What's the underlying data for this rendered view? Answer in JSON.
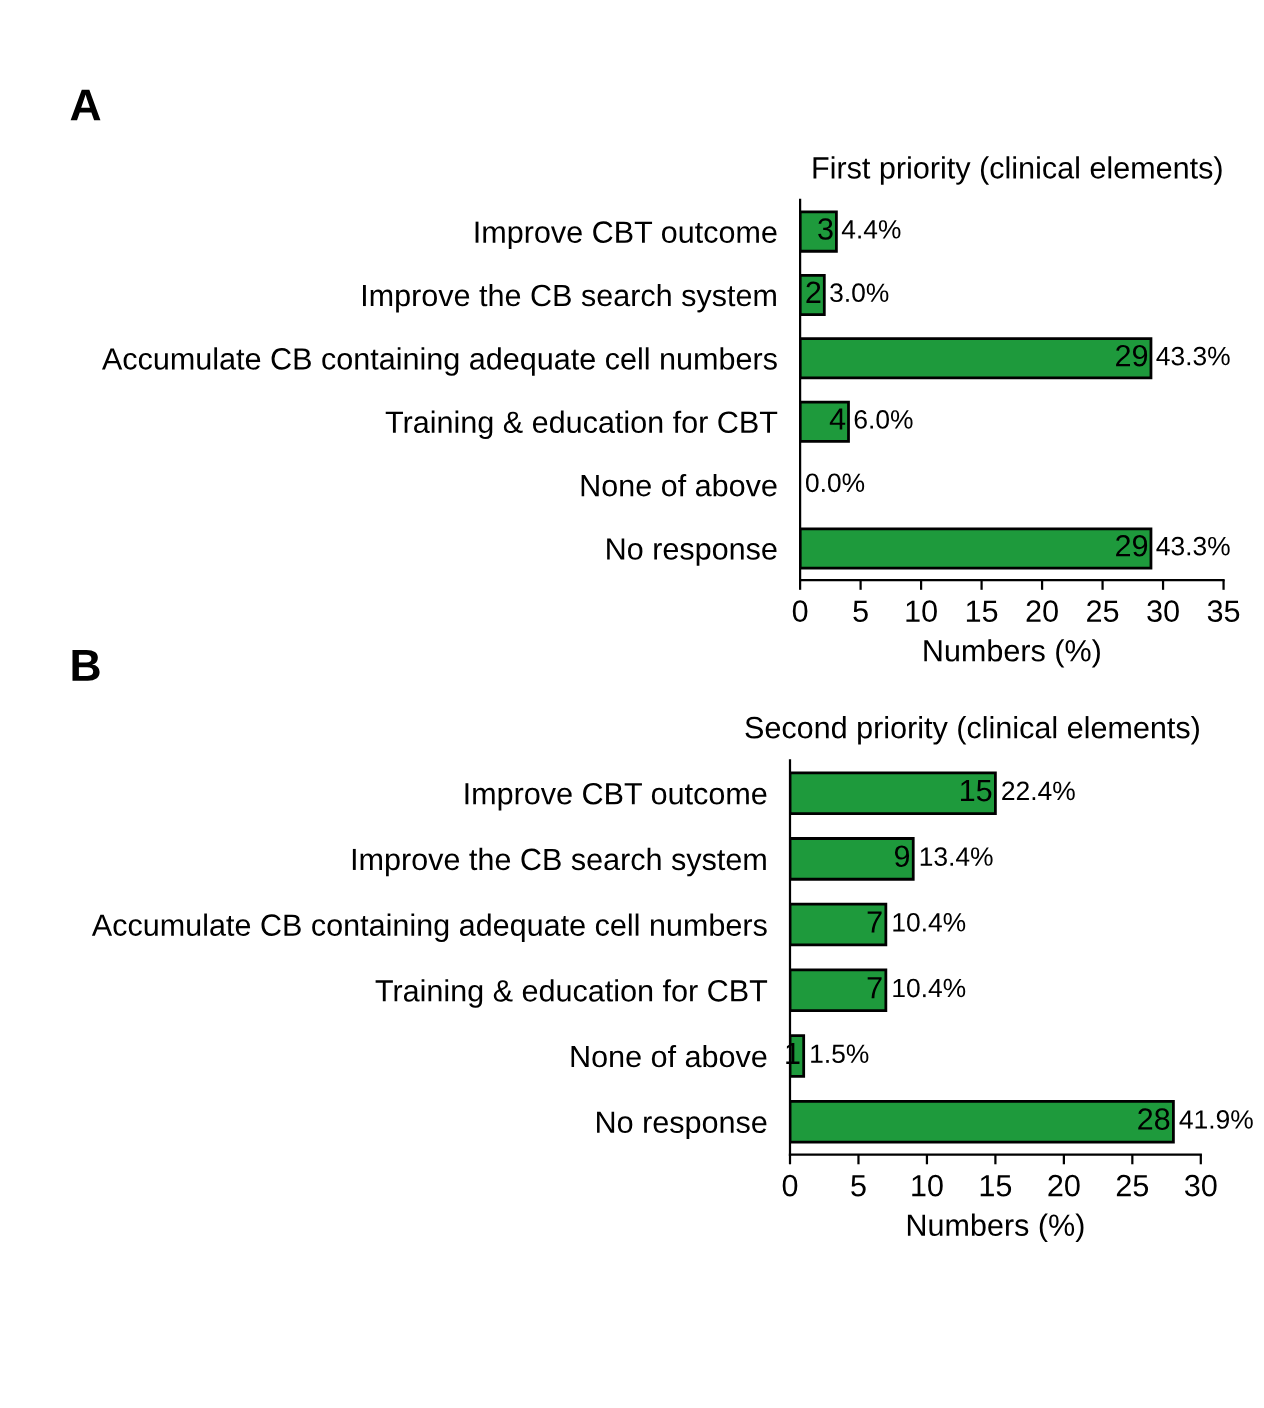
{
  "chart_data": [
    {
      "type": "bar",
      "orientation": "horizontal",
      "title": "A",
      "subtitle": "First priority (clinical elements)",
      "xlabel": "Numbers (%)",
      "categories": [
        "Improve CBT outcome",
        "Improve the CB search system",
        "Accumulate CB containing adequate cell numbers",
        "Training & education for CBT",
        "None of above",
        "No response"
      ],
      "values": [
        3,
        2,
        29,
        4,
        0,
        29
      ],
      "value_labels": [
        "3",
        "2",
        "29",
        "4",
        null,
        "29"
      ],
      "color": "#1e9a3c",
      "xlim": [
        0,
        35
      ],
      "xticks": [
        0,
        5,
        10,
        15,
        20,
        25,
        30,
        35
      ],
      "grid": false,
      "annotations": [
        {
          "text": "4.4%",
          "x": 3,
          "y": "Improve CBT outcome"
        },
        {
          "text": "3.0%",
          "x": 2,
          "y": "Improve the CB search system"
        },
        {
          "text": "43.3%",
          "x": 29,
          "y": "Accumulate CB containing adequate cell numbers"
        },
        {
          "text": "6.0%",
          "x": 4,
          "y": "Training & education for CBT"
        },
        {
          "text": "0.0%",
          "x": 0,
          "y": "None of above"
        },
        {
          "text": "43.3%",
          "x": 29,
          "y": "No response"
        }
      ]
    },
    {
      "type": "bar",
      "orientation": "horizontal",
      "title": "B",
      "subtitle": "Second priority (clinical elements)",
      "xlabel": "Numbers (%)",
      "categories": [
        "Improve CBT outcome",
        "Improve the CB search system",
        "Accumulate CB containing adequate cell numbers",
        "Training & education for CBT",
        "None of above",
        "No response"
      ],
      "values": [
        15,
        9,
        7,
        7,
        1,
        28
      ],
      "value_labels": [
        "15",
        "9",
        "7",
        "7",
        "1",
        "28"
      ],
      "color": "#1e9a3c",
      "xlim": [
        0,
        30
      ],
      "xticks": [
        0,
        5,
        10,
        15,
        20,
        25,
        30
      ],
      "grid": false,
      "annotations": [
        {
          "text": "22.4%",
          "x": 15,
          "y": "Improve CBT outcome"
        },
        {
          "text": "13.4%",
          "x": 9,
          "y": "Improve the CB search system"
        },
        {
          "text": "10.4%",
          "x": 7,
          "y": "Accumulate CB containing adequate cell numbers"
        },
        {
          "text": "10.4%",
          "x": 7,
          "y": "Training & education for CBT"
        },
        {
          "text": "1.5%",
          "x": 1,
          "y": "None of above"
        },
        {
          "text": "41.9%",
          "x": 28,
          "y": "No response"
        }
      ]
    }
  ]
}
